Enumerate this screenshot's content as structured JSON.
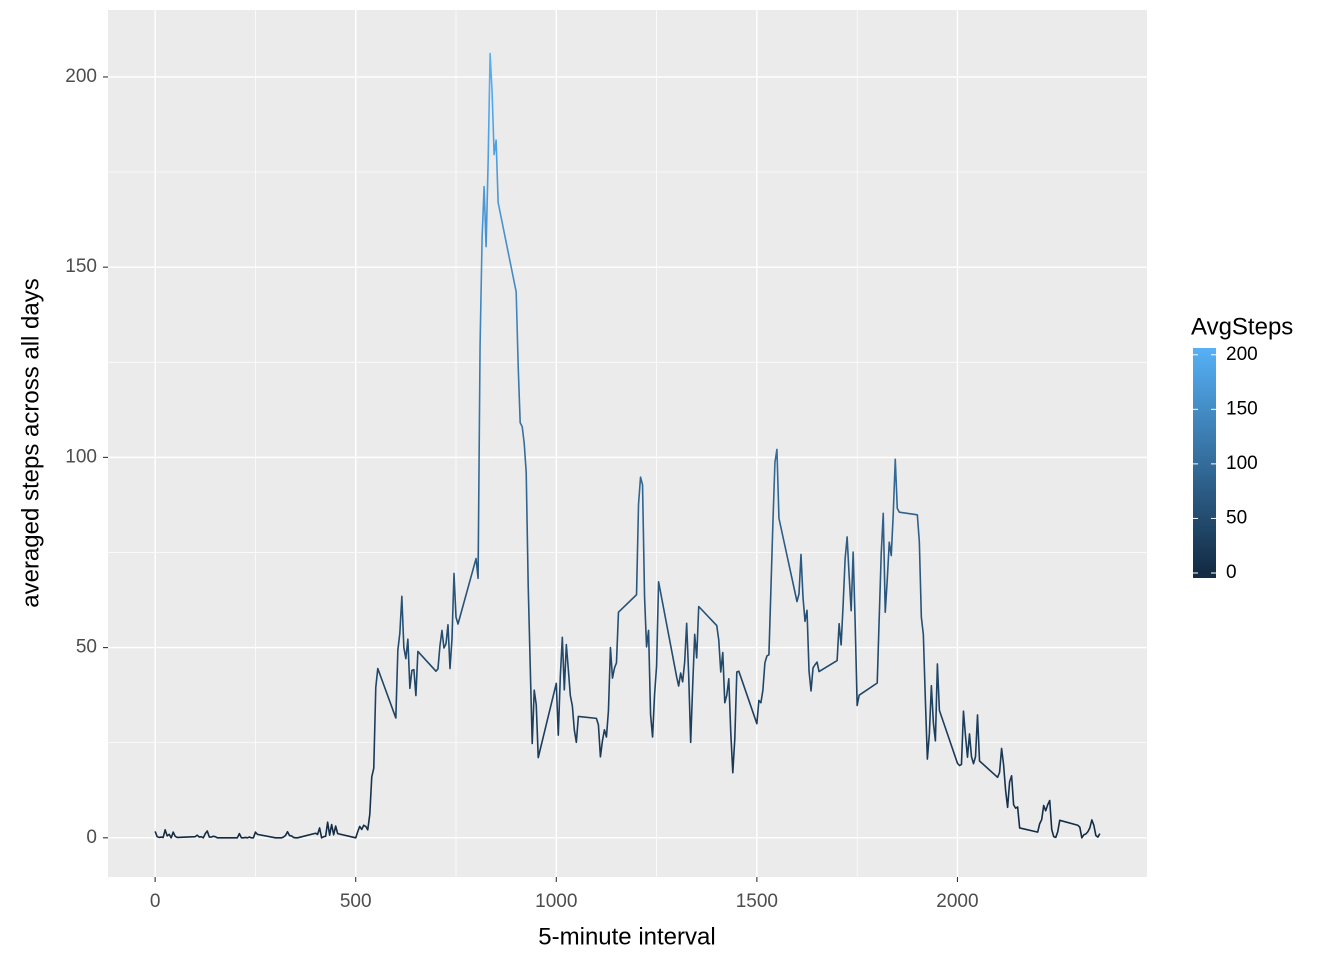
{
  "chart_data": {
    "type": "line",
    "x_label": "5-minute interval",
    "y_label": "averaged steps across all days",
    "x": [
      0,
      5,
      10,
      15,
      20,
      25,
      30,
      35,
      40,
      45,
      50,
      55,
      100,
      105,
      110,
      115,
      120,
      125,
      130,
      135,
      140,
      145,
      150,
      155,
      200,
      205,
      210,
      215,
      220,
      225,
      230,
      235,
      240,
      245,
      250,
      255,
      300,
      305,
      310,
      315,
      320,
      325,
      330,
      335,
      340,
      345,
      350,
      355,
      400,
      405,
      410,
      415,
      420,
      425,
      430,
      435,
      440,
      445,
      450,
      455,
      500,
      505,
      510,
      515,
      520,
      525,
      530,
      535,
      540,
      545,
      550,
      555,
      600,
      605,
      610,
      615,
      620,
      625,
      630,
      635,
      640,
      645,
      650,
      655,
      700,
      705,
      710,
      715,
      720,
      725,
      730,
      735,
      740,
      745,
      750,
      755,
      800,
      805,
      810,
      815,
      820,
      825,
      830,
      835,
      840,
      845,
      850,
      855,
      900,
      905,
      910,
      915,
      920,
      925,
      930,
      935,
      940,
      945,
      950,
      955,
      1000,
      1005,
      1010,
      1015,
      1020,
      1025,
      1030,
      1035,
      1040,
      1045,
      1050,
      1055,
      1100,
      1105,
      1110,
      1115,
      1120,
      1125,
      1130,
      1135,
      1140,
      1145,
      1150,
      1155,
      1200,
      1205,
      1210,
      1215,
      1220,
      1225,
      1230,
      1235,
      1240,
      1245,
      1250,
      1255,
      1300,
      1305,
      1310,
      1315,
      1320,
      1325,
      1330,
      1335,
      1340,
      1345,
      1350,
      1355,
      1400,
      1405,
      1410,
      1415,
      1420,
      1425,
      1430,
      1435,
      1440,
      1445,
      1450,
      1455,
      1500,
      1505,
      1510,
      1515,
      1520,
      1525,
      1530,
      1535,
      1540,
      1545,
      1550,
      1555,
      1600,
      1605,
      1610,
      1615,
      1620,
      1625,
      1630,
      1635,
      1640,
      1645,
      1650,
      1655,
      1700,
      1705,
      1710,
      1715,
      1720,
      1725,
      1730,
      1735,
      1740,
      1745,
      1750,
      1755,
      1800,
      1805,
      1810,
      1815,
      1820,
      1825,
      1830,
      1835,
      1840,
      1845,
      1850,
      1855,
      1900,
      1905,
      1910,
      1915,
      1920,
      1925,
      1930,
      1935,
      1940,
      1945,
      1950,
      1955,
      2000,
      2005,
      2010,
      2015,
      2020,
      2025,
      2030,
      2035,
      2040,
      2045,
      2050,
      2055,
      2100,
      2105,
      2110,
      2115,
      2120,
      2125,
      2130,
      2135,
      2140,
      2145,
      2150,
      2155,
      2200,
      2205,
      2210,
      2215,
      2220,
      2225,
      2230,
      2235,
      2240,
      2245,
      2250,
      2255,
      2300,
      2305,
      2310,
      2315,
      2320,
      2325,
      2330,
      2335,
      2340,
      2345,
      2350,
      2355
    ],
    "values": [
      1.7,
      0.3,
      0.1,
      0.2,
      0.1,
      2.1,
      0.5,
      0.9,
      0,
      1.5,
      0.4,
      0.1,
      0.3,
      0.7,
      0.2,
      0.3,
      0,
      1.1,
      1.8,
      0.2,
      0.2,
      0.4,
      0.3,
      0,
      0,
      0,
      1.1,
      0,
      0,
      0.1,
      0,
      0.2,
      0,
      0,
      1.5,
      0.9,
      0,
      0,
      0,
      0,
      0.2,
      0.6,
      1.6,
      0.6,
      0.5,
      0.1,
      0,
      0,
      1.2,
      0.9,
      2.6,
      0,
      0.3,
      0.4,
      4.1,
      0.7,
      3.5,
      0.8,
      3.1,
      1.1,
      0,
      1.6,
      3.0,
      2.2,
      3.3,
      3.0,
      2.1,
      6.1,
      16,
      18.3,
      39.5,
      44.5,
      31.5,
      49.3,
      53.8,
      63.5,
      50,
      47.1,
      52.2,
      39.3,
      44,
      44.2,
      37.4,
      49,
      43.8,
      44.4,
      50.5,
      54.5,
      49.9,
      51,
      56,
      44.5,
      52.3,
      69.5,
      58,
      56.2,
      73.4,
      68.2,
      129.4,
      157.5,
      171.2,
      155.4,
      177.3,
      206.2,
      195.9,
      179.6,
      183.4,
      167,
      143.5,
      124,
      109.1,
      108.1,
      103.7,
      96,
      66.2,
      45.2,
      24.8,
      38.8,
      35,
      21.1,
      40.6,
      27,
      42.4,
      52.7,
      38.9,
      50.8,
      44.3,
      37.4,
      34.7,
      28.3,
      25.1,
      31.9,
      31.4,
      29.7,
      21.3,
      25.5,
      28.4,
      26.5,
      33.4,
      50,
      42,
      44.6,
      46,
      59.3,
      63.9,
      87.7,
      94.8,
      92.8,
      63.4,
      50.2,
      54.5,
      32.4,
      26.5,
      37.7,
      45.1,
      67.3,
      42.3,
      39.9,
      43.3,
      41,
      46.2,
      56.4,
      42.8,
      25.1,
      40,
      53.5,
      47.3,
      60.8,
      55.8,
      52,
      43.6,
      48.7,
      35.5,
      37.5,
      41.8,
      27.5,
      17.1,
      26.1,
      43.6,
      43.8,
      30,
      36.1,
      35.5,
      38.8,
      46,
      47.8,
      48.1,
      65.3,
      82.9,
      98.7,
      102.1,
      84,
      62.1,
      64.1,
      74.5,
      63.2,
      56.9,
      59.8,
      43.9,
      38.6,
      44.7,
      45.5,
      46.2,
      43.7,
      46.6,
      56.3,
      50.7,
      61.2,
      73.4,
      79.1,
      68.9,
      59.7,
      75.1,
      56.5,
      34.8,
      37.5,
      40.7,
      58,
      74.7,
      85.3,
      59.3,
      67.8,
      77.7,
      74.2,
      85.3,
      99.5,
      86.6,
      85.6,
      84.9,
      77.8,
      58,
      53.4,
      36.3,
      20.7,
      27.4,
      40,
      30.2,
      25.5,
      45.7,
      33.5,
      19.6,
      19,
      19.3,
      33.3,
      26.8,
      21.2,
      27.3,
      21.3,
      19.5,
      21.3,
      32.3,
      20.2,
      15.9,
      17.2,
      23.5,
      19.2,
      12.5,
      8,
      14.7,
      16.3,
      8.7,
      7.8,
      8.1,
      2.6,
      1.5,
      3.7,
      4.8,
      8.5,
      7.1,
      8.7,
      9.8,
      2.2,
      0.3,
      0.1,
      1.6,
      4.6,
      3.3,
      2.8,
      0,
      0.8,
      1,
      1.6,
      2.6,
      4.7,
      3.3,
      0.6,
      0.2,
      1.1
    ],
    "xlim": [
      -117.5,
      2472.5
    ],
    "ylim": [
      -10.3,
      217.6
    ],
    "xticks": [
      0,
      500,
      1000,
      1500,
      2000
    ],
    "yticks": [
      0,
      50,
      100,
      150,
      200
    ],
    "grid": true,
    "minor_grid": true,
    "legend_title": "AvgSteps",
    "color_scale": {
      "low": "#132B43",
      "high": "#56B1F7",
      "lim": [
        0,
        206.2
      ],
      "ticks": [
        0,
        50,
        100,
        150,
        200
      ]
    }
  }
}
